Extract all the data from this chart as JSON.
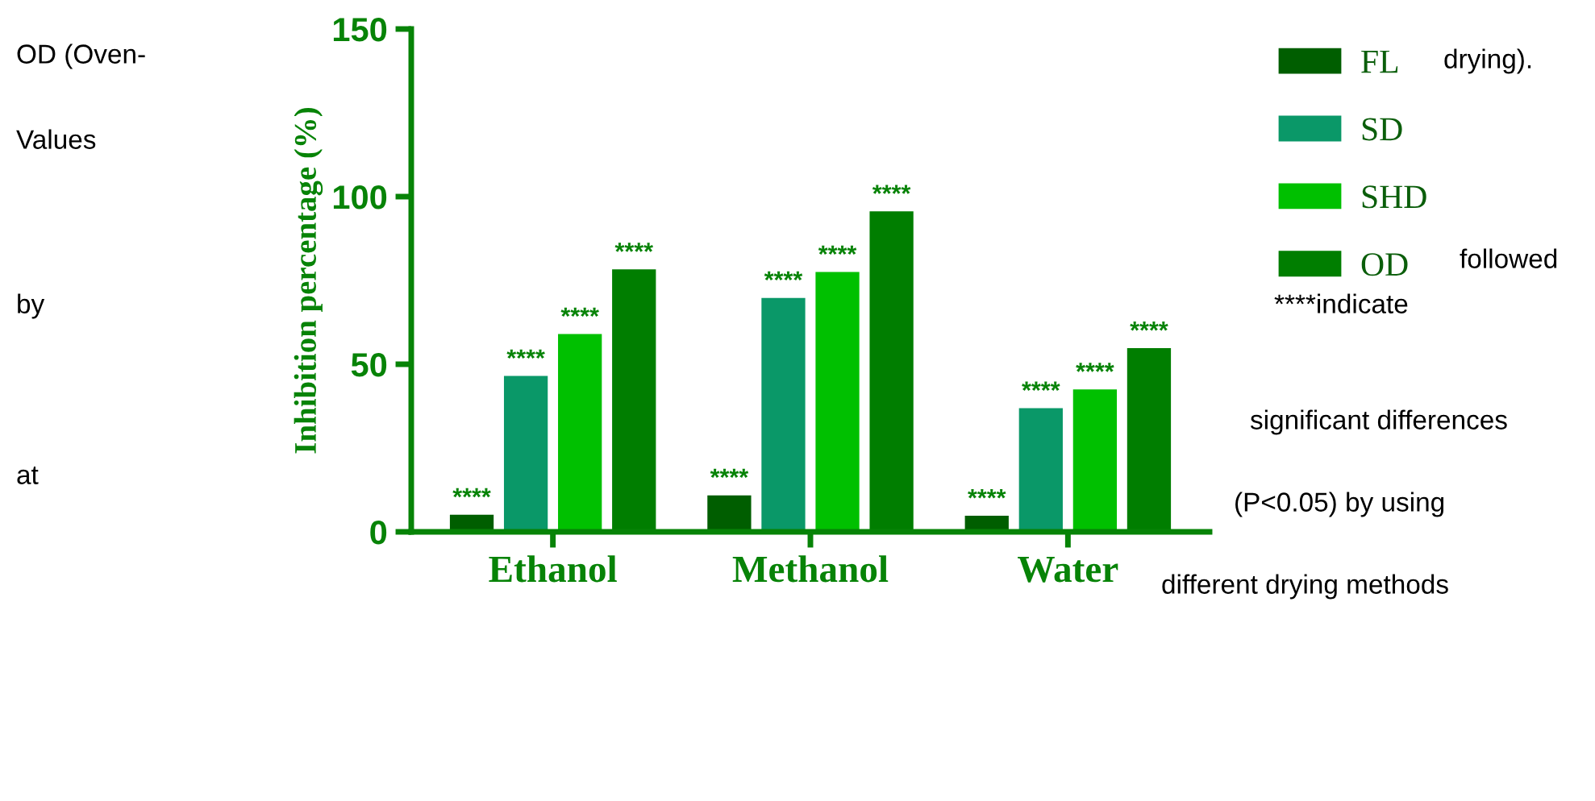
{
  "chart_data": {
    "type": "bar",
    "ylabel": "Inhibition percentage (%)",
    "categories": [
      "Ethanol",
      "Methanol",
      "Water"
    ],
    "series": [
      {
        "name": "FL",
        "color": "#005e00",
        "values": [
          5.1,
          10.9,
          4.8
        ],
        "value_labels": [
          "****",
          "****",
          "****"
        ]
      },
      {
        "name": "SD",
        "color": "#0a9868",
        "values": [
          46.5,
          69.8,
          36.9
        ],
        "value_labels": [
          "****",
          "****",
          "****"
        ]
      },
      {
        "name": "SHD",
        "color": "#00c000",
        "values": [
          59,
          77.5,
          42.5
        ],
        "value_labels": [
          "****",
          "****",
          "****"
        ]
      },
      {
        "name": "OD",
        "color": "#007e00",
        "values": [
          78.3,
          95.6,
          54.8
        ],
        "value_labels": [
          "****",
          "****",
          "****"
        ]
      }
    ],
    "ylim": [
      0,
      150
    ],
    "yticks": [
      0,
      50,
      100,
      150
    ],
    "grid": false,
    "legend": "right",
    "annotations": [
      "OD (Oven-",
      "Values",
      "by",
      "at",
      "drying).",
      "followed",
      "****indicate",
      "significant differences",
      "(P<0.05) by using",
      "different drying methods"
    ]
  }
}
